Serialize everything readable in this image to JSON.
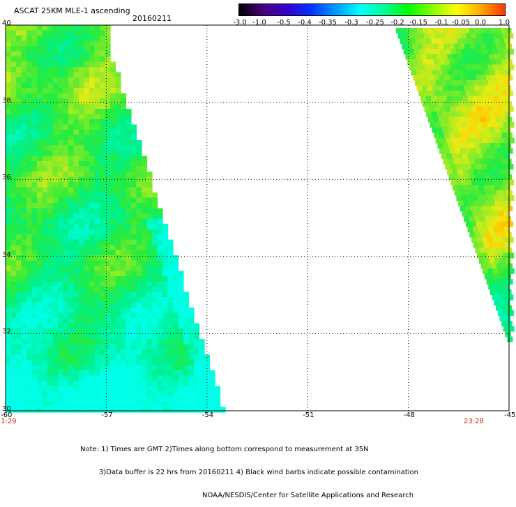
{
  "header": {
    "title": "ASCAT 25KM MLE-1 ascending",
    "date": "20160211"
  },
  "colorbar": {
    "labels": [
      "-3.0",
      "-1.0",
      "-0.5",
      "-0.4",
      "-0.35",
      "-0.3",
      "-0.25",
      "-0.2",
      "-0.15",
      "-0.1",
      "-0.05",
      "0.0",
      "1.0"
    ],
    "colors": [
      "#000000",
      "#4b0082",
      "#3300cc",
      "#0033ff",
      "#0099ff",
      "#00ffff",
      "#00ff99",
      "#00ff00",
      "#88ff00",
      "#ffff00",
      "#ffaa00",
      "#ff3300"
    ]
  },
  "axes": {
    "x_ticks": [
      "-60",
      "-57",
      "-54",
      "-51",
      "-48",
      "-45"
    ],
    "y_ticks": [
      "40",
      "38",
      "36",
      "34",
      "32",
      "30"
    ]
  },
  "pass_times": {
    "left": "1:29",
    "right": "23:28"
  },
  "note": {
    "line1": "Note: 1) Times are GMT 2)Times along bottom correspond to measurement at 35N",
    "line2": "3)Data buffer is 22 hrs from 20160211 4) Black wind barbs indicate possible contamination",
    "line3": "NOAA/NESDIS/Center for Satellite Applications and Research"
  },
  "swaths": {
    "left": "ascending swath, longitudes -60 to about -55.2",
    "right": "ascending swath, longitudes about -48.5 to -45"
  }
}
